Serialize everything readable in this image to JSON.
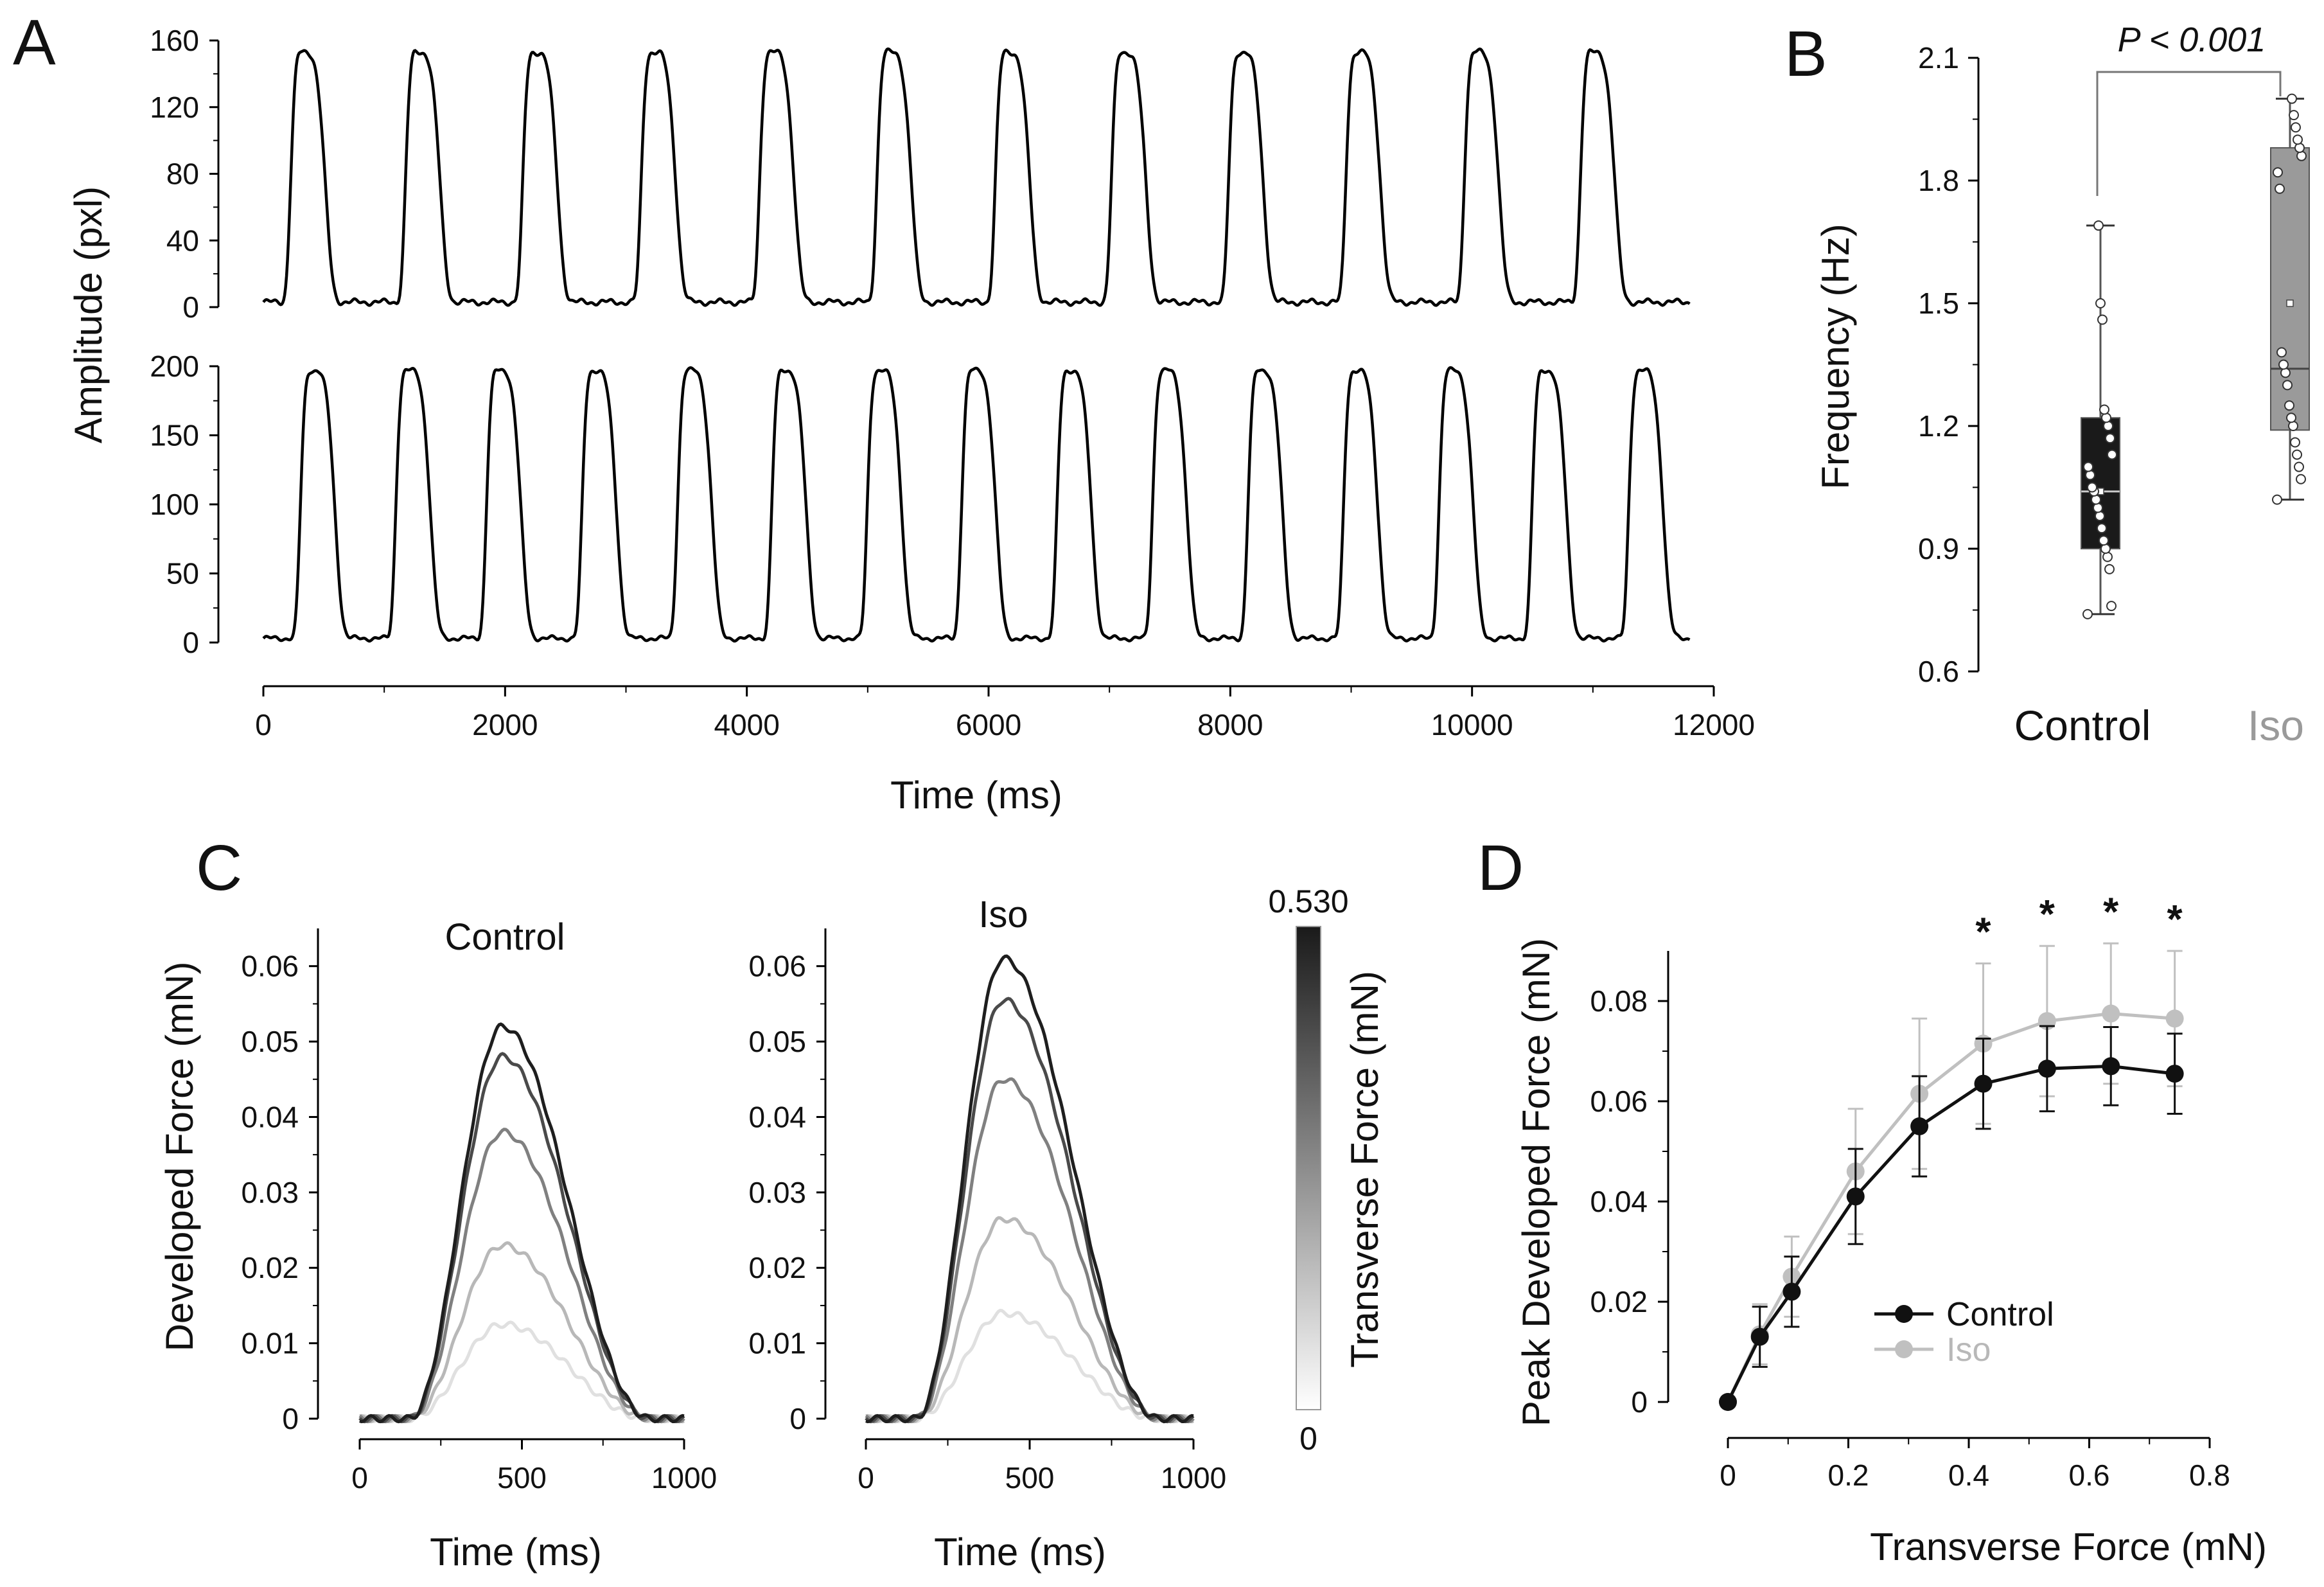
{
  "chart_data": [
    {
      "panel": "A",
      "type": "line",
      "ylabel": "Amplitude (pxl)",
      "xlabel": "Time (ms)",
      "xlim": [
        0,
        12000
      ],
      "xticks": [
        "0",
        "2000",
        "4000",
        "6000",
        "8000",
        "10000",
        "12000"
      ],
      "top": {
        "ylim": [
          0,
          160
        ],
        "yticks": [
          "160",
          "120",
          "80",
          "40",
          "0"
        ],
        "baseline": 3,
        "peak": 153,
        "peak_times": [
          330,
          1280,
          2250,
          3230,
          4210,
          5180,
          6160,
          7120,
          8090,
          9060,
          10040,
          11000
        ],
        "trace_end_ms": 11800
      },
      "bottom": {
        "ylim": [
          0,
          200
        ],
        "yticks": [
          "200",
          "150",
          "100",
          "50",
          "0"
        ],
        "baseline": 3,
        "peak": 197,
        "peak_times": [
          410,
          1200,
          1950,
          2740,
          3530,
          4310,
          5100,
          5880,
          6670,
          7460,
          8250,
          9040,
          9830,
          10600,
          11400
        ],
        "trace_end_ms": 11800
      }
    },
    {
      "panel": "B",
      "type": "box",
      "ylabel": "Frequency (Hz)",
      "ylim": [
        0.6,
        2.1
      ],
      "yticks": [
        "2.1",
        "1.8",
        "1.5",
        "1.2",
        "0.9",
        "0.6"
      ],
      "annotation": "P < 0.001",
      "groups": [
        {
          "name": "Control",
          "color": "#1a1a1a",
          "min": 0.74,
          "q1": 0.9,
          "median": 1.04,
          "mean": 1.04,
          "q3": 1.22,
          "max": 1.69,
          "points": [
            0.74,
            0.76,
            0.85,
            0.88,
            0.9,
            0.92,
            0.95,
            0.98,
            1.0,
            1.02,
            1.04,
            1.05,
            1.08,
            1.1,
            1.13,
            1.17,
            1.2,
            1.22,
            1.24,
            1.46,
            1.5,
            1.69
          ]
        },
        {
          "name": "Iso",
          "color": "#9a9a9a",
          "min": 1.02,
          "q1": 1.19,
          "median": 1.34,
          "mean": 1.5,
          "q3": 1.88,
          "max": 2.0,
          "points": [
            1.02,
            1.07,
            1.1,
            1.13,
            1.16,
            1.2,
            1.22,
            1.25,
            1.3,
            1.33,
            1.35,
            1.38,
            1.78,
            1.82,
            1.86,
            1.88,
            1.9,
            1.93,
            1.96,
            2.0
          ]
        }
      ]
    },
    {
      "panel": "C",
      "type": "line",
      "ylabel": "Developed Force (mN)",
      "xlabel": "Time (ms)",
      "xlim": [
        0,
        1000
      ],
      "ylim": [
        0,
        0.065
      ],
      "yticks": [
        "0.06",
        "0.05",
        "0.04",
        "0.03",
        "0.02",
        "0.01",
        "0"
      ],
      "xticks": [
        "0",
        "500",
        "1000"
      ],
      "subplots": [
        {
          "title": "Control",
          "peak_time_ms": 440,
          "series": [
            {
              "color": "#e0e0e0",
              "peak": 0.0125
            },
            {
              "color": "#b8b8b8",
              "peak": 0.023
            },
            {
              "color": "#808080",
              "peak": 0.038
            },
            {
              "color": "#4a4a4a",
              "peak": 0.048
            },
            {
              "color": "#1e1e1e",
              "peak": 0.052
            }
          ]
        },
        {
          "title": "Iso",
          "peak_time_ms": 420,
          "series": [
            {
              "color": "#e0e0e0",
              "peak": 0.014
            },
            {
              "color": "#b8b8b8",
              "peak": 0.0265
            },
            {
              "color": "#808080",
              "peak": 0.045
            },
            {
              "color": "#4a4a4a",
              "peak": 0.0555
            },
            {
              "color": "#1e1e1e",
              "peak": 0.061
            }
          ]
        }
      ],
      "colorbar": {
        "label": "Transverse Force (mN)",
        "max_label": "0.530",
        "min_label": "0",
        "colors": [
          "#ffffff",
          "#1a1a1a"
        ]
      }
    },
    {
      "panel": "D",
      "type": "line",
      "ylabel": "Peak Developed Force (mN)",
      "xlabel": "Transverse Force (mN)",
      "xlim": [
        0,
        0.8
      ],
      "ylim": [
        0,
        0.09
      ],
      "xticks": [
        "0",
        "0.2",
        "0.4",
        "0.6",
        "0.8"
      ],
      "yticks": [
        "0.08",
        "0.06",
        "0.04",
        "0.02",
        "0"
      ],
      "x": [
        0,
        0.053,
        0.106,
        0.212,
        0.318,
        0.424,
        0.53,
        0.636,
        0.742
      ],
      "series": [
        {
          "name": "Control",
          "color": "#111111",
          "values": [
            0,
            0.013,
            0.022,
            0.041,
            0.055,
            0.0635,
            0.0665,
            0.067,
            0.0655
          ],
          "errors": [
            0,
            0.006,
            0.007,
            0.0095,
            0.01,
            0.009,
            0.0085,
            0.0078,
            0.008
          ]
        },
        {
          "name": "Iso",
          "color": "#c0c0c0",
          "values": [
            0,
            0.0135,
            0.025,
            0.046,
            0.0615,
            0.0715,
            0.076,
            0.0775,
            0.0765
          ],
          "errors": [
            0,
            0.006,
            0.008,
            0.0125,
            0.015,
            0.016,
            0.015,
            0.014,
            0.0135
          ]
        }
      ],
      "significance": {
        "label": "*",
        "x": [
          0.424,
          0.53,
          0.636,
          0.742
        ]
      }
    }
  ],
  "panels": {
    "a": "A",
    "b": "B",
    "c": "C",
    "d": "D"
  }
}
